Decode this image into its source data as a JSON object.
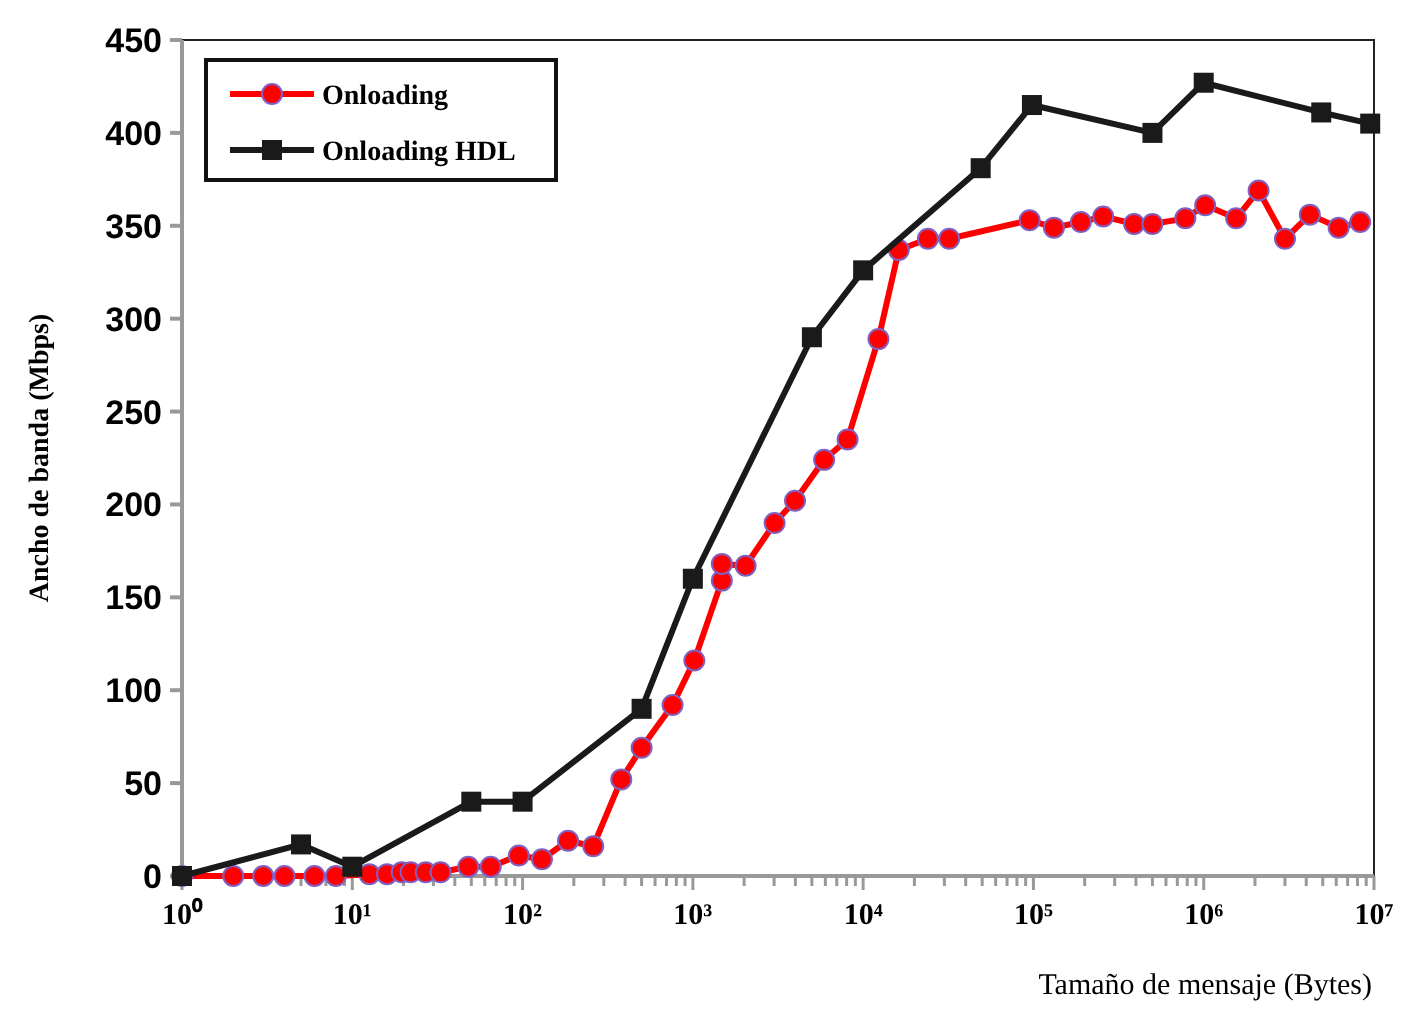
{
  "chart_data": {
    "type": "line",
    "xlabel": "Tamaño de mensaje (Bytes)",
    "ylabel": "Ancho de banda (Mbps)",
    "log": "x",
    "xlim": [
      1,
      10000000
    ],
    "ylim": [
      0,
      450
    ],
    "yticks": [
      0,
      50,
      100,
      150,
      200,
      250,
      300,
      350,
      400,
      450
    ],
    "xticks": [
      {
        "value": 1,
        "label": "10⁰"
      },
      {
        "value": 2,
        "label": null
      },
      {
        "value": 3,
        "label": null
      },
      {
        "value": 4,
        "label": null
      },
      {
        "value": 5,
        "label": null
      },
      {
        "value": 6,
        "label": null
      },
      {
        "value": 7,
        "label": null
      },
      {
        "value": 8,
        "label": null
      },
      {
        "value": 9,
        "label": null
      },
      {
        "value": 10,
        "label": "10¹"
      },
      {
        "value": 20,
        "label": null
      },
      {
        "value": 30,
        "label": null
      },
      {
        "value": 40,
        "label": null
      },
      {
        "value": 50,
        "label": null
      },
      {
        "value": 60,
        "label": null
      },
      {
        "value": 70,
        "label": null
      },
      {
        "value": 80,
        "label": null
      },
      {
        "value": 90,
        "label": null
      },
      {
        "value": 100,
        "label": "10²"
      },
      {
        "value": 200,
        "label": null
      },
      {
        "value": 300,
        "label": null
      },
      {
        "value": 400,
        "label": null
      },
      {
        "value": 500,
        "label": null
      },
      {
        "value": 600,
        "label": null
      },
      {
        "value": 700,
        "label": null
      },
      {
        "value": 800,
        "label": null
      },
      {
        "value": 900,
        "label": null
      },
      {
        "value": 1000,
        "label": "10³"
      },
      {
        "value": 2000,
        "label": null
      },
      {
        "value": 3000,
        "label": null
      },
      {
        "value": 4000,
        "label": null
      },
      {
        "value": 5000,
        "label": null
      },
      {
        "value": 6000,
        "label": null
      },
      {
        "value": 7000,
        "label": null
      },
      {
        "value": 8000,
        "label": null
      },
      {
        "value": 9000,
        "label": null
      },
      {
        "value": 10000,
        "label": "10⁴"
      },
      {
        "value": 20000,
        "label": null
      },
      {
        "value": 30000,
        "label": null
      },
      {
        "value": 40000,
        "label": null
      },
      {
        "value": 50000,
        "label": null
      },
      {
        "value": 60000,
        "label": null
      },
      {
        "value": 70000,
        "label": null
      },
      {
        "value": 80000,
        "label": null
      },
      {
        "value": 90000,
        "label": null
      },
      {
        "value": 100000,
        "label": "10⁵"
      },
      {
        "value": 200000,
        "label": null
      },
      {
        "value": 300000,
        "label": null
      },
      {
        "value": 400000,
        "label": null
      },
      {
        "value": 500000,
        "label": null
      },
      {
        "value": 600000,
        "label": null
      },
      {
        "value": 700000,
        "label": null
      },
      {
        "value": 800000,
        "label": null
      },
      {
        "value": 900000,
        "label": null
      },
      {
        "value": 1000000,
        "label": "10⁶"
      },
      {
        "value": 2000000,
        "label": null
      },
      {
        "value": 3000000,
        "label": null
      },
      {
        "value": 4000000,
        "label": null
      },
      {
        "value": 5000000,
        "label": null
      },
      {
        "value": 6000000,
        "label": null
      },
      {
        "value": 7000000,
        "label": null
      },
      {
        "value": 8000000,
        "label": null
      },
      {
        "value": 9000000,
        "label": null
      },
      {
        "value": 10000000,
        "label": "10⁷"
      }
    ],
    "legend": "top left",
    "grid": false,
    "series": [
      {
        "name": "Onloading",
        "color": "#ff0000",
        "marker": "circle",
        "x": [
          1,
          2,
          3,
          4,
          6,
          8,
          12.6,
          16,
          19.5,
          22,
          27,
          33,
          48,
          65,
          95,
          130,
          185,
          260,
          380,
          500,
          760,
          1020,
          1480,
          1480,
          2040,
          3020,
          3980,
          5900,
          8100,
          12300,
          16200,
          24000,
          32000,
          95000,
          132000,
          190000,
          257000,
          390000,
          500000,
          780000,
          1020000,
          1550000,
          2100000,
          3000000,
          4200000,
          6200000,
          8300000
        ],
        "values": [
          0,
          0,
          0,
          0,
          0,
          0,
          1,
          1,
          2,
          2,
          2,
          2,
          5,
          5,
          11,
          9,
          19,
          16,
          52,
          69,
          92,
          116,
          159,
          168,
          167,
          190,
          202,
          224,
          235,
          289,
          337,
          343,
          343,
          353,
          349,
          352,
          355,
          351,
          351,
          354,
          361,
          354,
          369,
          343,
          356,
          349,
          352
        ]
      },
      {
        "name": "Onloading HDL",
        "color": "#1a1a1a",
        "marker": "square",
        "x": [
          1,
          5,
          10,
          50,
          100,
          500,
          1000,
          5000,
          10000,
          49000,
          98000,
          500000,
          1000000,
          4900000,
          9500000
        ],
        "values": [
          0,
          17,
          5,
          40,
          40,
          90,
          160,
          290,
          326,
          381,
          415,
          400,
          427,
          411,
          405
        ]
      }
    ]
  }
}
